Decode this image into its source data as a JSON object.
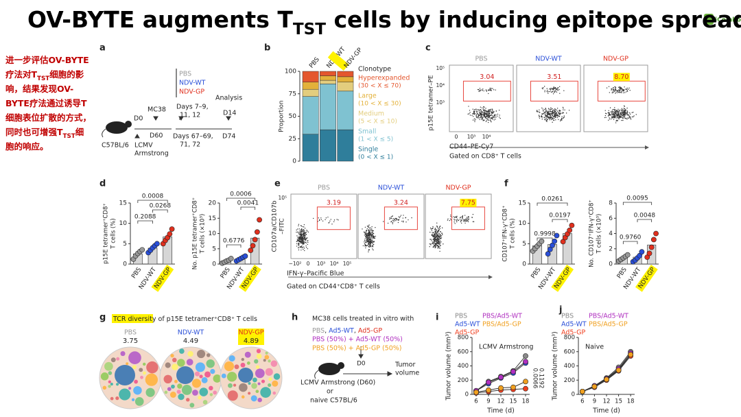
{
  "title": {
    "parts": [
      "OV-BYTE augments T",
      "TST",
      " cells by inducing epitope spreadir"
    ]
  },
  "logo": "iCombo",
  "note": {
    "lines": [
      [
        "进一步评估OV-BYTE"
      ],
      [
        "疗法对T",
        "TST",
        "细胞的影"
      ],
      [
        "响，结果发现OV-"
      ],
      [
        "BYTE疗法通过诱导T"
      ],
      [
        "细胞表位扩散的方式，"
      ],
      [
        "同时也可增强T",
        "TST",
        "细"
      ],
      [
        "胞的响应。"
      ]
    ]
  },
  "a": {
    "label": "a",
    "mouse": "C57BL/6",
    "d0": "D0",
    "lcmv": [
      "LCMV",
      "Armstrong"
    ],
    "mc38": "MC38",
    "d60": "D60",
    "groups": [
      {
        "name": "PBS",
        "color": "#9a9a9a"
      },
      {
        "name": "NDV-WT",
        "color": "#2a4fd8"
      },
      {
        "name": "NDV-GP",
        "color": "#e0301e"
      }
    ],
    "days1": [
      "Days 7–9,",
      "11, 12"
    ],
    "days2": [
      "Days 67–69,",
      "71, 72"
    ],
    "analysis": "Analysis",
    "d14": "D14",
    "d74": "D74"
  },
  "b": {
    "type": "stacked_bar",
    "label": "b",
    "categories": [
      "PBS",
      "NDV-WT",
      "NDV-GP"
    ],
    "ylabel": "Proportion",
    "ylim": [
      0,
      100
    ],
    "yticks": [
      0,
      25,
      50,
      75,
      100
    ],
    "legend_title": "Clonotype",
    "series": [
      {
        "name": "Single",
        "range": "(0 < X ≤ 1)",
        "color": "#2f7e9b",
        "values": [
          30,
          35,
          35
        ]
      },
      {
        "name": "Small",
        "range": "(1 < X ≤ 5)",
        "color": "#7fc2d1",
        "values": [
          42,
          51,
          43
        ]
      },
      {
        "name": "Medium",
        "range": "(5 < X ≤ 10)",
        "color": "#e3cd7e",
        "values": [
          8,
          4,
          10
        ]
      },
      {
        "name": "Large",
        "range": "(10 < X ≤ 30)",
        "color": "#e3b13a",
        "values": [
          8,
          5,
          6
        ]
      },
      {
        "name": "Hyperexpanded",
        "range": "(30 < X ≤ 70)",
        "color": "#e4572e",
        "values": [
          12,
          5,
          6
        ]
      }
    ]
  },
  "c": {
    "type": "flow",
    "label": "c",
    "groups": [
      "PBS",
      "NDV-WT",
      "NDV-GP"
    ],
    "colors": [
      "#9a9a9a",
      "#2a4fd8",
      "#e0301e"
    ],
    "values": [
      3.04,
      3.51,
      8.7
    ],
    "value_labels": [
      "3.04",
      "3.51",
      "8.70"
    ],
    "ylabel": "p15E tetramer–PE",
    "xlabel": "CD44–PE-Cy7",
    "gate": "Gated on CD8⁺ T cells",
    "xtick_labels": [
      "0",
      "10³",
      "10⁴"
    ],
    "ytick_labels": [
      "10⁵",
      "10⁴",
      "10³"
    ]
  },
  "d": {
    "label": "d",
    "charts": [
      {
        "type": "bar",
        "categories": [
          "PBS",
          "NDV-WT",
          "NDV-GP"
        ],
        "colors": [
          "#9a9a9a",
          "#2a4fd8",
          "#e0301e"
        ],
        "values": [
          2.5,
          3.9,
          6.7
        ],
        "points": [
          [
            1.2,
            2.0,
            2.6,
            3.1,
            3.5
          ],
          [
            2.8,
            3.4,
            4.0,
            4.5,
            5.0
          ],
          [
            5.0,
            5.8,
            6.5,
            7.4,
            8.6
          ]
        ],
        "ylim": [
          0,
          15
        ],
        "yticks": [
          0,
          5,
          10,
          15
        ],
        "ylabel": [
          "p15E tetramer⁺CD8⁺",
          "T cells (%)"
        ],
        "pvalues": [
          "0.0008",
          "0.2088",
          "0.0268"
        ]
      },
      {
        "type": "bar",
        "categories": [
          "PBS",
          "NDV-WT",
          "NDV-GP"
        ],
        "colors": [
          "#9a9a9a",
          "#2a4fd8",
          "#e0301e"
        ],
        "values": [
          1.0,
          1.8,
          8.5
        ],
        "points": [
          [
            0.3,
            0.6,
            1.0,
            1.3,
            1.8
          ],
          [
            1.0,
            1.4,
            1.8,
            2.2,
            2.6
          ],
          [
            4.5,
            6.0,
            8.0,
            10.5,
            14.5
          ]
        ],
        "ylim": [
          0,
          20
        ],
        "yticks": [
          0,
          5,
          10,
          15,
          20
        ],
        "ylabel": [
          "No. p15E tetramer⁺CD8⁺",
          "T cells (×10³)"
        ],
        "pvalues": [
          "0.0006",
          "0.6776",
          "0.0041"
        ]
      }
    ]
  },
  "e": {
    "type": "flow",
    "label": "e",
    "groups": [
      "PBS",
      "NDV-WT",
      "NDV-GP"
    ],
    "colors": [
      "#9a9a9a",
      "#2a4fd8",
      "#e0301e"
    ],
    "values": [
      3.19,
      3.24,
      7.75
    ],
    "ylabel": [
      "CD107a/CD107b",
      "–FITC"
    ],
    "xlabel": "IFN-γ–Pacific Blue",
    "gate": "Gated on CD44⁺CD8⁺ T cells",
    "xtick_labels": [
      "−10²",
      "0",
      "10³",
      "10⁴",
      "10⁵"
    ],
    "ytick_labels": [
      "10⁵"
    ]
  },
  "f": {
    "label": "f",
    "charts": [
      {
        "type": "bar",
        "categories": [
          "PBS",
          "NDV-WT",
          "NDV-GP"
        ],
        "colors": [
          "#9a9a9a",
          "#2a4fd8",
          "#e0301e"
        ],
        "values": [
          4.5,
          4.8,
          7.5
        ],
        "points": [
          [
            3.2,
            3.8,
            4.4,
            5.0,
            5.6
          ],
          [
            2.5,
            3.6,
            4.6,
            5.6,
            7.0
          ],
          [
            5.5,
            6.5,
            7.4,
            8.3,
            9.5
          ]
        ],
        "ylim": [
          0,
          15
        ],
        "yticks": [
          0,
          5,
          10,
          15
        ],
        "ylabel": [
          "CD107⁺IFN-γ⁺CD8⁺",
          "T cells (%)"
        ],
        "pvalues": [
          "0.0261",
          "0.9998",
          "0.0197"
        ]
      },
      {
        "type": "bar",
        "categories": [
          "PBS",
          "NDV-WT",
          "NDV-GP"
        ],
        "colors": [
          "#9a9a9a",
          "#2a4fd8",
          "#e0301e"
        ],
        "values": [
          0.8,
          0.9,
          2.5
        ],
        "points": [
          [
            0.4,
            0.6,
            0.8,
            1.0,
            1.2
          ],
          [
            0.3,
            0.5,
            0.8,
            1.1,
            1.6
          ],
          [
            0.9,
            1.4,
            2.2,
            3.2,
            4.0
          ]
        ],
        "ylim": [
          0,
          8
        ],
        "yticks": [
          0,
          2,
          4,
          6,
          8
        ],
        "ylabel": [
          "No. CD107⁺IFN-γ⁺CD8⁺",
          "T cells (×10³)"
        ],
        "pvalues": [
          "0.0095",
          "0.9760",
          "0.0048"
        ]
      }
    ]
  },
  "g": {
    "label": "g",
    "title": [
      "TCR diversity",
      " of p15E tetramer⁺CD8⁺ T cells"
    ],
    "groups": [
      "PBS",
      "NDV-WT",
      "NDV-GP"
    ],
    "colors": [
      "#9a9a9a",
      "#2a4fd8",
      "#e0301e"
    ],
    "values": [
      3.75,
      4.49,
      4.89
    ]
  },
  "h": {
    "label": "h",
    "title": "MC38 cells treated in vitro with",
    "line1": [
      {
        "text": "PBS",
        "color": "#9a9a9a"
      },
      {
        "text": ", ",
        "color": "#333333"
      },
      {
        "text": "Ad5-WT",
        "color": "#2a4fd8"
      },
      {
        "text": ", ",
        "color": "#333333"
      },
      {
        "text": "Ad5-GP",
        "color": "#e0301e"
      }
    ],
    "line2": {
      "text": "PBS (50%) + Ad5-WT (50%)",
      "color": "#b030c0"
    },
    "line3": {
      "text": "PBS (50%) + Ad5-GP (50%)",
      "color": "#f0a020"
    },
    "d0": "D0",
    "tumor": [
      "Tumor",
      "volume"
    ],
    "host": [
      "LCMV Armstrong (D60)",
      "or",
      "naive C57BL/6"
    ]
  },
  "i": {
    "type": "line",
    "label": "i",
    "subtitle": "LCMV Armstrong",
    "xlabel": "Time (d)",
    "ylabel": "Tumor volume (mm³)",
    "x": [
      6,
      9,
      12,
      15,
      18
    ],
    "xlim": [
      5,
      19
    ],
    "xticks": [
      6,
      9,
      12,
      15,
      18
    ],
    "ylim": [
      0,
      800
    ],
    "yticks": [
      0,
      200,
      400,
      600,
      800
    ],
    "pvalues": [
      "0.0066",
      "0.1192"
    ],
    "series": [
      {
        "name": "PBS",
        "color": "#8a8a8a",
        "values": [
          50,
          180,
          250,
          330,
          540
        ]
      },
      {
        "name": "Ad5-WT",
        "color": "#2a4fd8",
        "values": [
          50,
          150,
          230,
          300,
          440
        ]
      },
      {
        "name": "Ad5-GP",
        "color": "#f04020",
        "values": [
          20,
          40,
          60,
          70,
          80
        ]
      },
      {
        "name": "PBS/Ad5-WT",
        "color": "#b030c0",
        "values": [
          50,
          170,
          240,
          320,
          460
        ]
      },
      {
        "name": "PBS/Ad5-GP",
        "color": "#f0a020",
        "values": [
          30,
          60,
          90,
          100,
          180
        ]
      }
    ]
  },
  "j": {
    "type": "line",
    "label": "j",
    "subtitle": "Naive",
    "xlabel": "Time (d)",
    "ylabel": "Tumor volume (mm³)",
    "x": [
      6,
      9,
      12,
      15,
      18
    ],
    "xlim": [
      5,
      19
    ],
    "xticks": [
      6,
      9,
      12,
      15,
      18
    ],
    "ylim": [
      0,
      800
    ],
    "yticks": [
      0,
      200,
      400,
      600,
      800
    ],
    "series": [
      {
        "name": "PBS",
        "color": "#8a8a8a",
        "values": [
          40,
          120,
          230,
          380,
          600
        ]
      },
      {
        "name": "Ad5-WT",
        "color": "#2a4fd8",
        "values": [
          40,
          110,
          210,
          350,
          560
        ]
      },
      {
        "name": "Ad5-GP",
        "color": "#f04020",
        "values": [
          40,
          100,
          200,
          330,
          540
        ]
      },
      {
        "name": "PBS/Ad5-WT",
        "color": "#b030c0",
        "values": [
          40,
          120,
          220,
          360,
          580
        ]
      },
      {
        "name": "PBS/Ad5-GP",
        "color": "#f0a020",
        "values": [
          40,
          110,
          210,
          340,
          560
        ]
      }
    ]
  }
}
